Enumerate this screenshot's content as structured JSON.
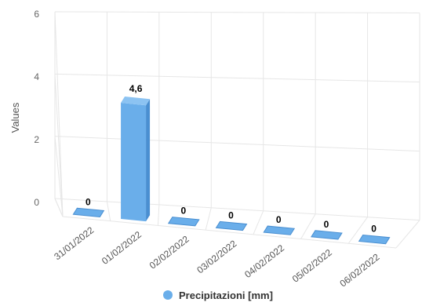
{
  "chart_data": {
    "type": "bar",
    "categories": [
      "31/01/2022",
      "01/02/2022",
      "02/02/2022",
      "03/02/2022",
      "04/02/2022",
      "05/02/2022",
      "06/02/2022"
    ],
    "series": [
      {
        "name": "Precipitazioni [mm]",
        "values": [
          0,
          4.6,
          0,
          0,
          0,
          0,
          0
        ]
      }
    ],
    "data_labels": [
      "0",
      "4,6",
      "0",
      "0",
      "0",
      "0",
      "0"
    ],
    "ylabel": "Values",
    "ylim": [
      0,
      6
    ],
    "yticks": [
      0,
      2,
      4,
      6
    ],
    "grid": true,
    "legend_position": "bottom",
    "render_3d": true,
    "colors": {
      "bar_front": "#6aaeea",
      "bar_side": "#4a8fd1",
      "bar_top": "#8cc3f2",
      "grid": "#e6e6e6"
    }
  }
}
